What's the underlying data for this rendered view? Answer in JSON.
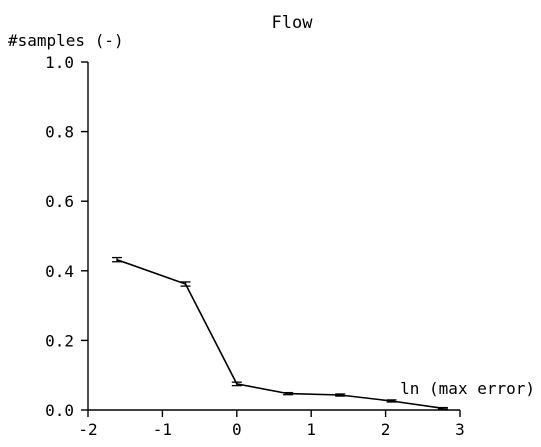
{
  "chart_data": {
    "type": "line",
    "title": "Flow",
    "ylabel": "#samples (-)",
    "xlabel": "ln (max error)",
    "xlim": [
      -2,
      3
    ],
    "ylim": [
      0,
      1
    ],
    "x_ticks": [
      -2,
      -1,
      0,
      1,
      2,
      3
    ],
    "x_tick_labels": [
      "-2",
      "-1",
      "0",
      "1",
      "2",
      "3"
    ],
    "y_ticks": [
      0,
      0.2,
      0.4,
      0.6,
      0.8,
      1.0
    ],
    "y_tick_labels": [
      "0.0",
      "0.2",
      "0.4",
      "0.6",
      "0.8",
      "1.0"
    ],
    "grid": false,
    "series": [
      {
        "x": [
          -1.61,
          -0.69,
          0.0,
          0.69,
          1.39,
          2.08,
          2.77
        ],
        "y": [
          0.432,
          0.362,
          0.075,
          0.047,
          0.043,
          0.026,
          0.005
        ],
        "err": [
          0.006,
          0.006,
          0.005,
          0.003,
          0.003,
          0.003,
          0.002
        ]
      }
    ]
  }
}
